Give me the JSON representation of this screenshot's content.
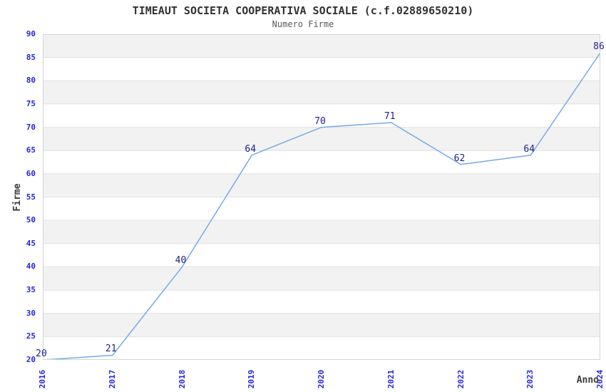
{
  "title": "TIMEAUT SOCIETA COOPERATIVA SOCIALE (c.f.02889650210)",
  "subtitle": "Numero Firme",
  "chart_data": {
    "type": "line",
    "title": "TIMEAUT SOCIETA COOPERATIVA SOCIALE (c.f.02889650210)",
    "subtitle": "Numero Firme",
    "xlabel": "Anno",
    "ylabel": "Firme",
    "categories": [
      "2016",
      "2017",
      "2018",
      "2019",
      "2020",
      "2021",
      "2022",
      "2023",
      "2024"
    ],
    "values": [
      20,
      21,
      40,
      64,
      70,
      71,
      62,
      64,
      86
    ],
    "point_labels": [
      "20",
      "21",
      "40",
      "64",
      "70",
      "71",
      "62",
      "64",
      "86"
    ],
    "ylim": [
      20,
      90
    ],
    "ytick_step": 5,
    "yticks": [
      "20",
      "25",
      "30",
      "35",
      "40",
      "45",
      "50",
      "55",
      "60",
      "65",
      "70",
      "75",
      "80",
      "85",
      "90"
    ],
    "grid": true,
    "legend": "none",
    "colors": {
      "line": "#75abe8",
      "tick_label": "#2525dd",
      "point_label": "#1f1f8c",
      "band_even": "#ffffff",
      "band_odd": "#f2f2f2",
      "gridline": "#e1e1e1",
      "plot_border": "#d4d4d4",
      "title": "#323232",
      "subtitle": "#5a5a5a",
      "axis_title": "#3a3a3a"
    }
  }
}
